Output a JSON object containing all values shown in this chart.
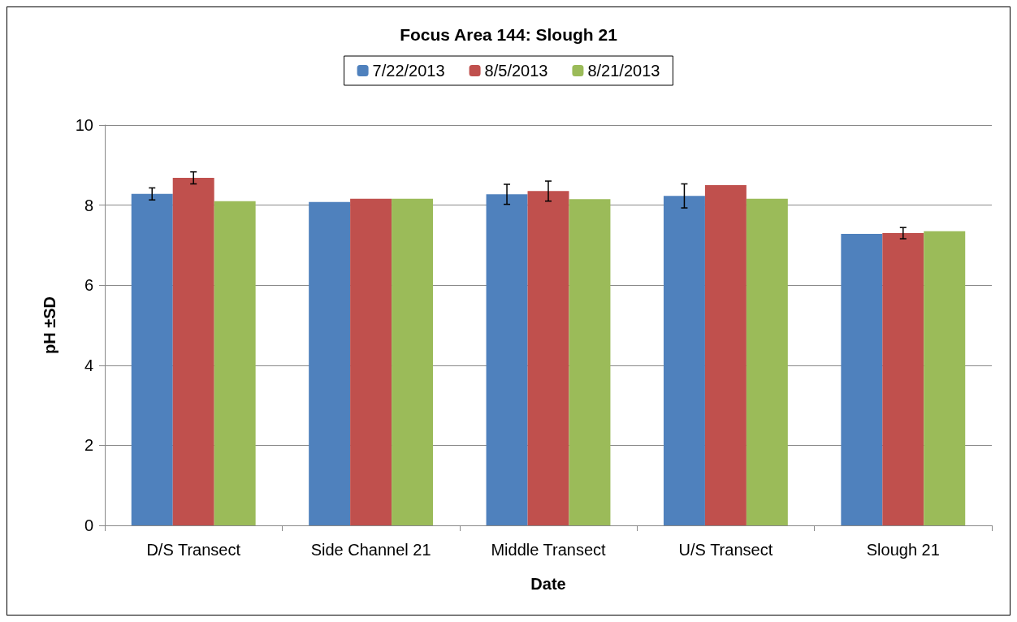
{
  "chart_data": {
    "type": "bar",
    "title": "Focus Area 144: Slough 21",
    "xlabel": "Date",
    "ylabel": "pH ±SD",
    "categories": [
      "D/S Transect",
      "Side Channel 21",
      "Middle Transect",
      "U/S Transect",
      "Slough 21"
    ],
    "series": [
      {
        "name": "7/22/2013",
        "color": "#4f81bd",
        "values": [
          8.28,
          8.08,
          8.27,
          8.23,
          7.28
        ],
        "errors": [
          0.15,
          null,
          0.25,
          0.3,
          null
        ]
      },
      {
        "name": "8/5/2013",
        "color": "#c0504d",
        "values": [
          8.68,
          8.16,
          8.35,
          8.5,
          7.3
        ],
        "errors": [
          0.15,
          null,
          0.25,
          null,
          0.14
        ]
      },
      {
        "name": "8/21/2013",
        "color": "#9bbb59",
        "values": [
          8.1,
          8.16,
          8.15,
          8.16,
          7.35
        ]
      }
    ],
    "ylim": [
      0,
      10
    ],
    "yticks": [
      0,
      2,
      4,
      6,
      8,
      10
    ],
    "grid": "y",
    "legend": "top"
  }
}
